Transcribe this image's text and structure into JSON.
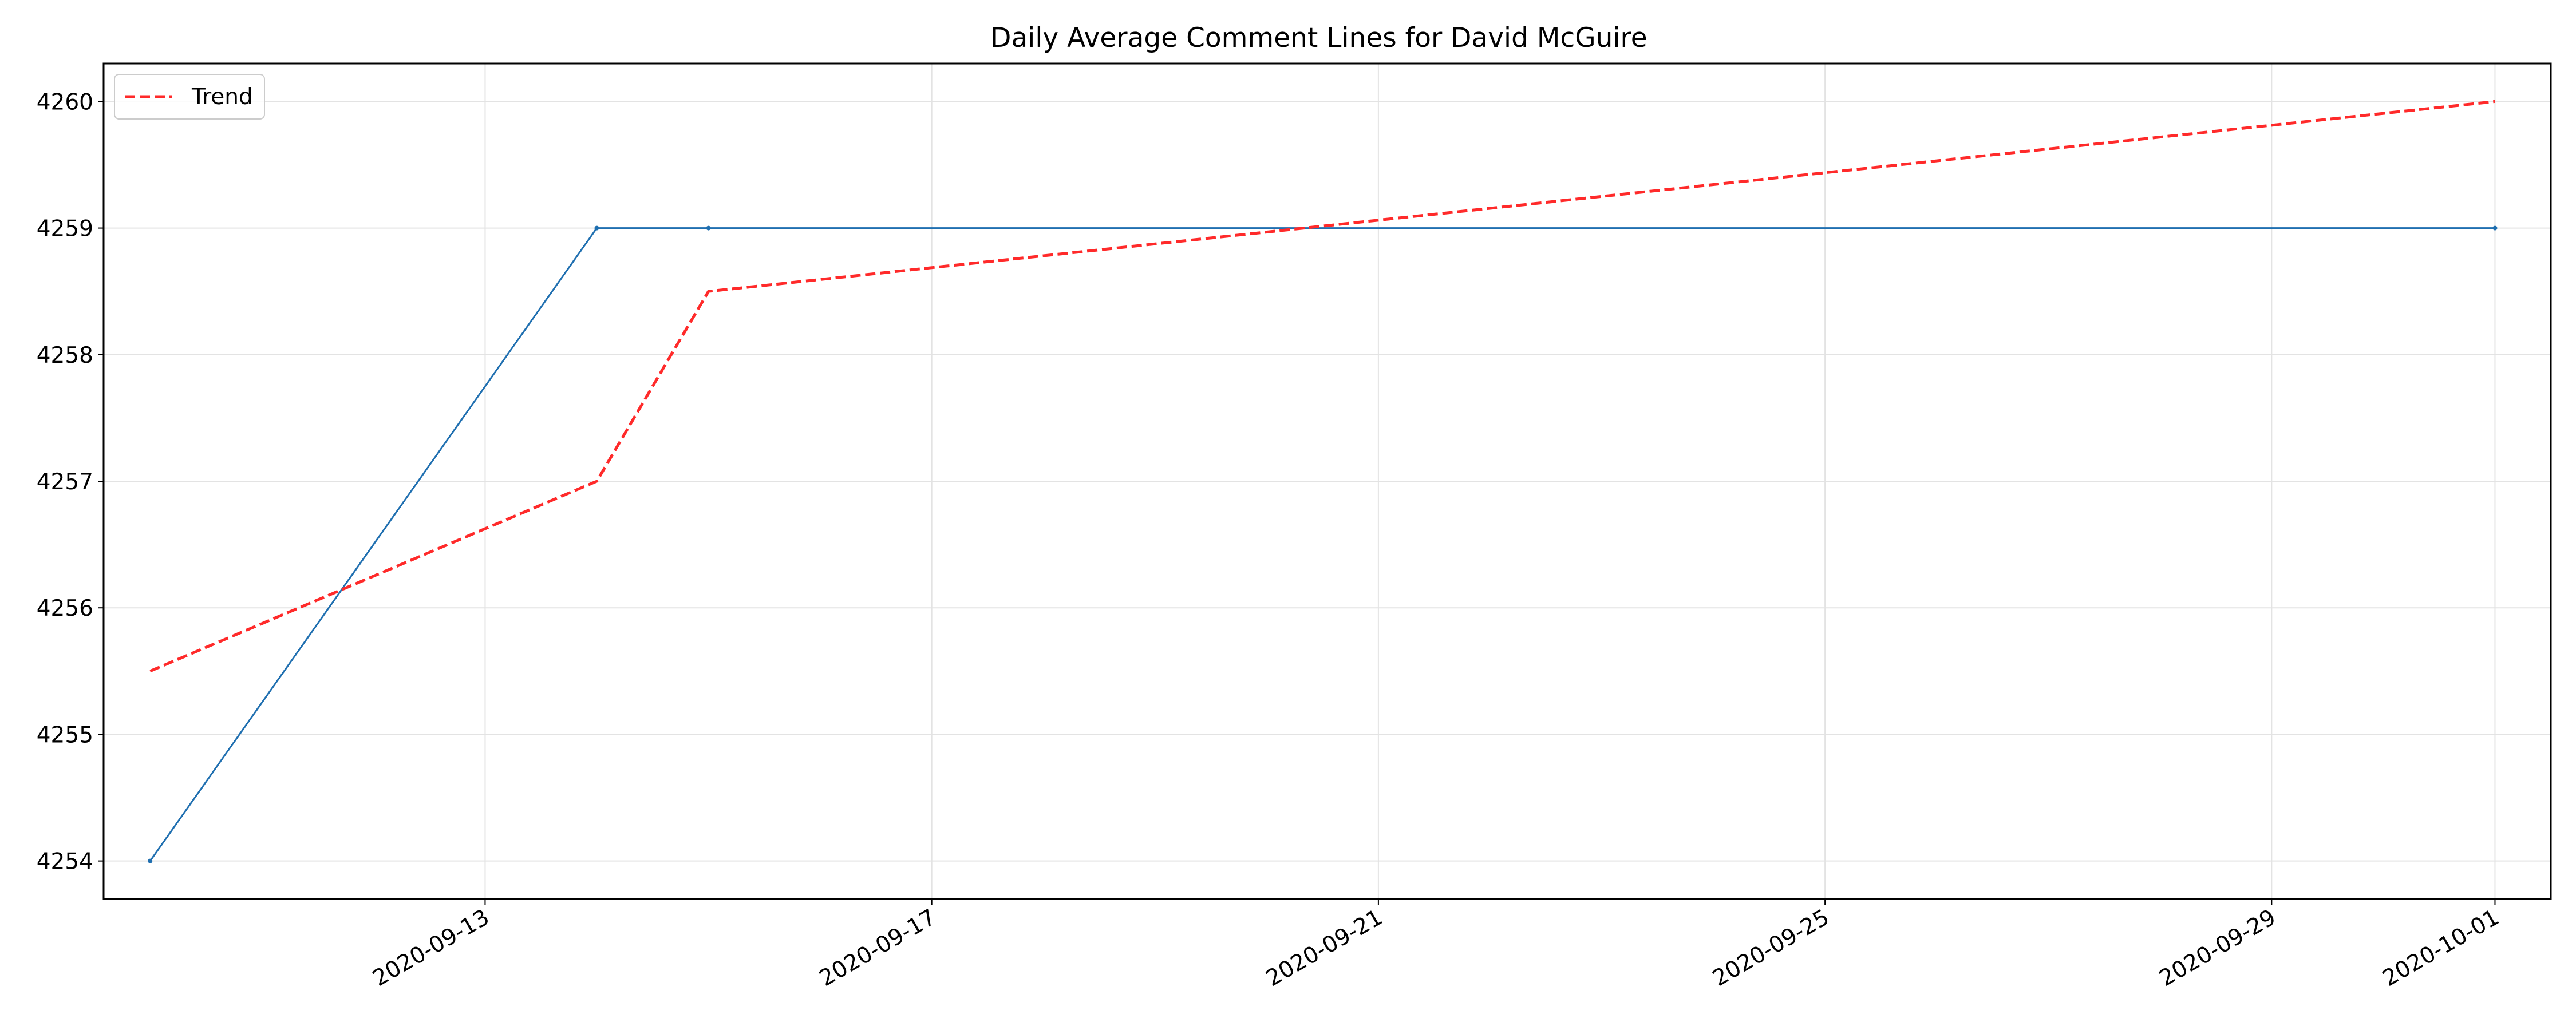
{
  "chart_data": {
    "type": "line",
    "title": "Daily Average Comment Lines for David McGuire",
    "xlabel": "",
    "ylabel": "",
    "x_type": "date",
    "xlim": [
      "2020-09-09T14:00",
      "2020-10-01T12:00"
    ],
    "ylim": [
      4253.7,
      4260.3
    ],
    "x_ticks": [
      "2020-09-13",
      "2020-09-17",
      "2020-09-21",
      "2020-09-25",
      "2020-09-29",
      "2020-10-01"
    ],
    "y_ticks": [
      4254,
      4255,
      4256,
      4257,
      4258,
      4259,
      4260
    ],
    "grid": true,
    "legend_position": "top-left",
    "series": [
      {
        "name": "",
        "color": "#1f6fb0",
        "style": "solid",
        "markers": true,
        "points": [
          {
            "x": "2020-09-10",
            "y": 4254
          },
          {
            "x": "2020-09-14",
            "y": 4259
          },
          {
            "x": "2020-09-15",
            "y": 4259
          },
          {
            "x": "2020-10-01",
            "y": 4259
          }
        ]
      },
      {
        "name": "Trend",
        "color": "#ff2a2a",
        "style": "dashed",
        "markers": false,
        "points": [
          {
            "x": "2020-09-10",
            "y": 4255.5
          },
          {
            "x": "2020-09-14",
            "y": 4257
          },
          {
            "x": "2020-09-15",
            "y": 4258.5
          },
          {
            "x": "2020-10-01",
            "y": 4260
          }
        ]
      }
    ]
  }
}
